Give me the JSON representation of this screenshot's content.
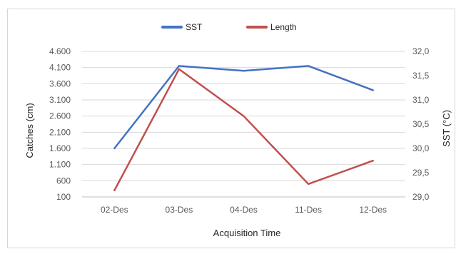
{
  "chart_data": {
    "type": "line",
    "categories": [
      "02-Des",
      "03-Des",
      "04-Des",
      "11-Des",
      "12-Des"
    ],
    "xlabel": "Acquisition Time",
    "ylabel_left": "Catches (cm)",
    "ylabel_right": "SST (°C)",
    "left_axis": {
      "min": 100,
      "max": 4600,
      "step": 500,
      "tick_labels": [
        "100",
        "600",
        "1.100",
        "1.600",
        "2.100",
        "2.600",
        "3.100",
        "3.600",
        "4.100",
        "4.600"
      ]
    },
    "right_axis": {
      "min": 29.0,
      "max": 32.0,
      "step": 0.5,
      "tick_labels": [
        "29,0",
        "29,5",
        "30,0",
        "30,5",
        "31,0",
        "31,5",
        "32,0"
      ]
    },
    "grid": true,
    "legend_position": "top",
    "series": [
      {
        "name": "SST",
        "axis": "right",
        "color": "#4472c4",
        "values": [
          30.0,
          31.7,
          31.6,
          31.7,
          31.2
        ]
      },
      {
        "name": "Length",
        "axis": "left",
        "color": "#c0504d",
        "values": [
          300,
          4050,
          2600,
          500,
          1220
        ]
      }
    ]
  }
}
